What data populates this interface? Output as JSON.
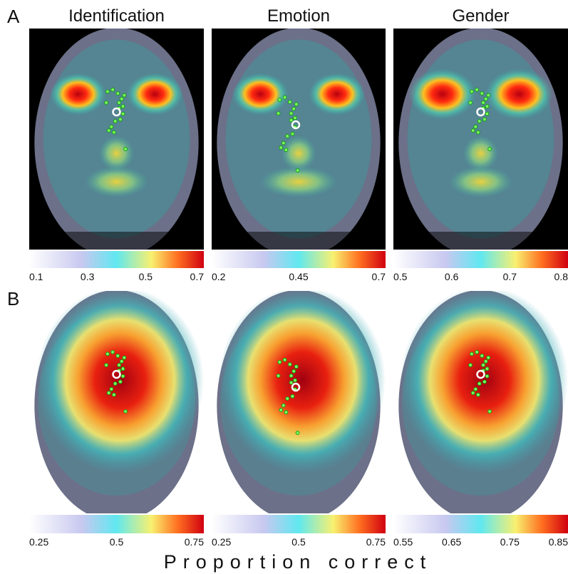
{
  "figure": {
    "rows": [
      {
        "label": "A",
        "panels": [
          {
            "title": "Identification",
            "colorbar": {
              "ticks": [
                0.1,
                0.3,
                0.5,
                0.7
              ]
            }
          },
          {
            "title": "Emotion",
            "colorbar": {
              "ticks": [
                0.2,
                0.45,
                0.7
              ]
            }
          },
          {
            "title": "Gender",
            "colorbar": {
              "ticks": [
                0.5,
                0.6,
                0.7,
                0.8
              ]
            }
          }
        ]
      },
      {
        "label": "B",
        "panels": [
          {
            "colorbar": {
              "ticks": [
                0.25,
                0.5,
                0.75
              ]
            }
          },
          {
            "colorbar": {
              "ticks": [
                0.25,
                0.5,
                0.75
              ]
            }
          },
          {
            "colorbar": {
              "ticks": [
                0.55,
                0.65,
                0.75,
                0.85
              ]
            }
          }
        ]
      }
    ],
    "xlabel": "Proportion correct"
  }
}
